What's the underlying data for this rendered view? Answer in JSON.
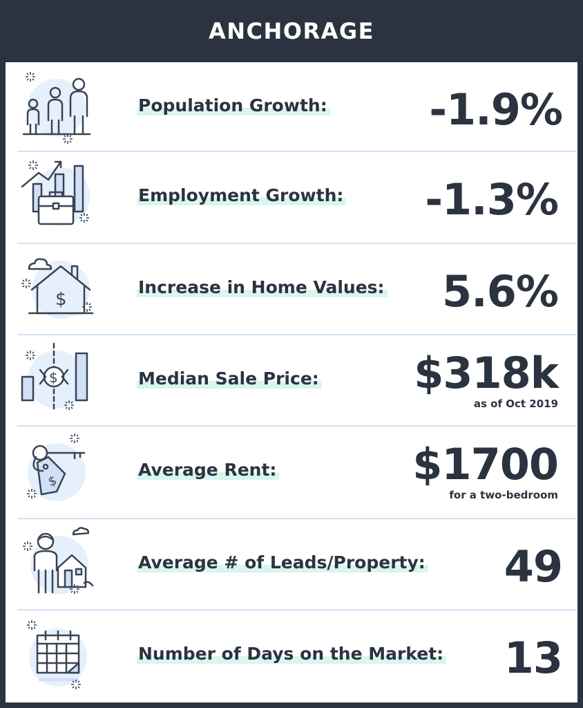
{
  "title": "ANCHORAGE",
  "rows": [
    {
      "label": "Population Growth:",
      "value": "-1.9%",
      "sub": "",
      "icon": "people-icon"
    },
    {
      "label": "Employment Growth:",
      "value": "-1.3%",
      "sub": "",
      "icon": "briefcase-growth-icon"
    },
    {
      "label": "Increase in Home Values:",
      "value": "5.6%",
      "sub": "",
      "icon": "house-dollar-icon"
    },
    {
      "label": "Median Sale Price:",
      "value": "$318k",
      "sub": "as  of Oct 2019",
      "icon": "price-chart-icon"
    },
    {
      "label": "Average Rent:",
      "value": "$1700",
      "sub": "for a two-bedroom",
      "icon": "key-tag-icon"
    },
    {
      "label": "Average # of Leads/Property:",
      "value": "49",
      "sub": "",
      "icon": "person-house-icon"
    },
    {
      "label": "Number of Days on the Market:",
      "value": "13",
      "sub": "",
      "icon": "calendar-icon"
    }
  ],
  "colors": {
    "navy": "#2b3340",
    "icon_fill": "#e6f0fc",
    "icon_stroke": "#3a4352",
    "bar_fill": "#cfe0f7",
    "highlight": "#d8f5ee",
    "divider": "#cfe2f7"
  }
}
